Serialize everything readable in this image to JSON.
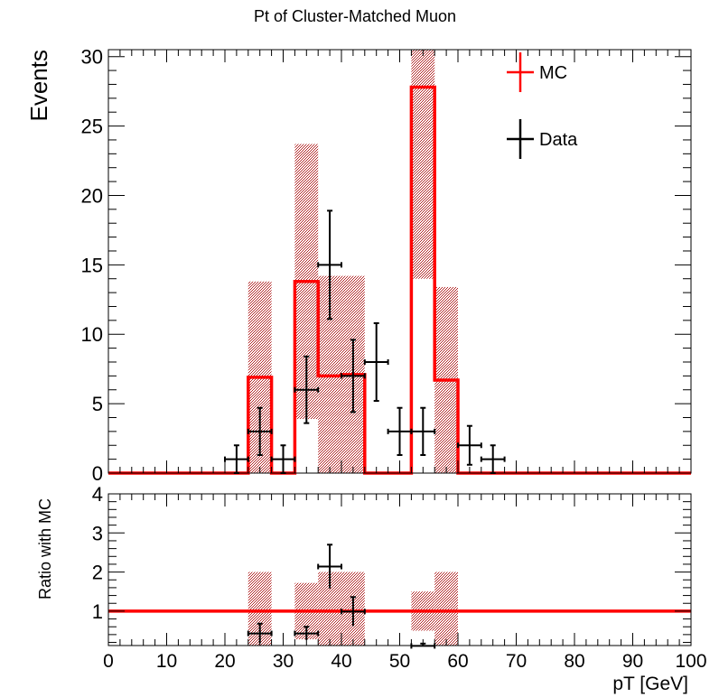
{
  "chart_data": [
    {
      "type": "histogram",
      "title": "Pt of Cluster-Matched Muon",
      "ylabel": "Events",
      "xlim": [
        0,
        100
      ],
      "ylim": [
        0,
        30.5
      ],
      "yticks": [
        0,
        5,
        10,
        15,
        20,
        25,
        30
      ],
      "bin_width": 4,
      "legend": {
        "placement": "top-right",
        "entries": [
          {
            "label": "MC",
            "color": "#ff0000"
          },
          {
            "label": "Data",
            "color": "#000000"
          }
        ]
      },
      "mc": {
        "name": "MC",
        "color": "#ff0000",
        "band_color": "#b02020",
        "bins": [
          {
            "lo": 24,
            "hi": 28,
            "value": 6.9,
            "err": 6.9
          },
          {
            "lo": 32,
            "hi": 36,
            "value": 13.8,
            "err": 9.9
          },
          {
            "lo": 36,
            "hi": 40,
            "value": 7.0,
            "err": 7.2
          },
          {
            "lo": 40,
            "hi": 44,
            "value": 7.1,
            "err": 7.1
          },
          {
            "lo": 52,
            "hi": 56,
            "value": 27.8,
            "err": 13.8
          },
          {
            "lo": 56,
            "hi": 60,
            "value": 6.7,
            "err": 6.7
          }
        ]
      },
      "data": {
        "name": "Data",
        "color": "#000000",
        "points": [
          {
            "x": 22,
            "y": 1,
            "err": 1.0
          },
          {
            "x": 26,
            "y": 3,
            "err": 1.7
          },
          {
            "x": 30,
            "y": 1,
            "err": 1.0
          },
          {
            "x": 34,
            "y": 6,
            "err": 2.4
          },
          {
            "x": 38,
            "y": 15,
            "err": 3.9
          },
          {
            "x": 42,
            "y": 7,
            "err": 2.6
          },
          {
            "x": 46,
            "y": 8,
            "err": 2.8
          },
          {
            "x": 50,
            "y": 3,
            "err": 1.7
          },
          {
            "x": 54,
            "y": 3,
            "err": 1.7
          },
          {
            "x": 62,
            "y": 2,
            "err": 1.4
          },
          {
            "x": 66,
            "y": 1,
            "err": 1.0
          }
        ]
      }
    },
    {
      "type": "ratio",
      "ylabel": "Ratio with MC",
      "xlabel": "pT [GeV]",
      "xlim": [
        0,
        100
      ],
      "ylim": [
        0.12,
        4.0
      ],
      "yticks": [
        1,
        2,
        3,
        4
      ],
      "xticks": [
        0,
        10,
        20,
        30,
        40,
        50,
        60,
        70,
        80,
        90,
        100
      ],
      "reference_line": 1,
      "bands": [
        {
          "lo": 24,
          "hi": 28,
          "lower": 0.0,
          "upper": 2.0
        },
        {
          "lo": 32,
          "hi": 36,
          "lower": 0.28,
          "upper": 1.72
        },
        {
          "lo": 36,
          "hi": 40,
          "lower": 0.0,
          "upper": 2.0
        },
        {
          "lo": 40,
          "hi": 44,
          "lower": 0.0,
          "upper": 2.0
        },
        {
          "lo": 52,
          "hi": 56,
          "lower": 0.5,
          "upper": 1.5
        },
        {
          "lo": 56,
          "hi": 60,
          "lower": 0.0,
          "upper": 2.0
        }
      ],
      "points": [
        {
          "x": 26,
          "y": 0.43,
          "err": 0.25
        },
        {
          "x": 34,
          "y": 0.43,
          "err": 0.17
        },
        {
          "x": 38,
          "y": 2.14,
          "err": 0.56
        },
        {
          "x": 42,
          "y": 0.99,
          "err": 0.37
        },
        {
          "x": 54,
          "y": 0.11,
          "err": 0.06
        }
      ]
    }
  ]
}
